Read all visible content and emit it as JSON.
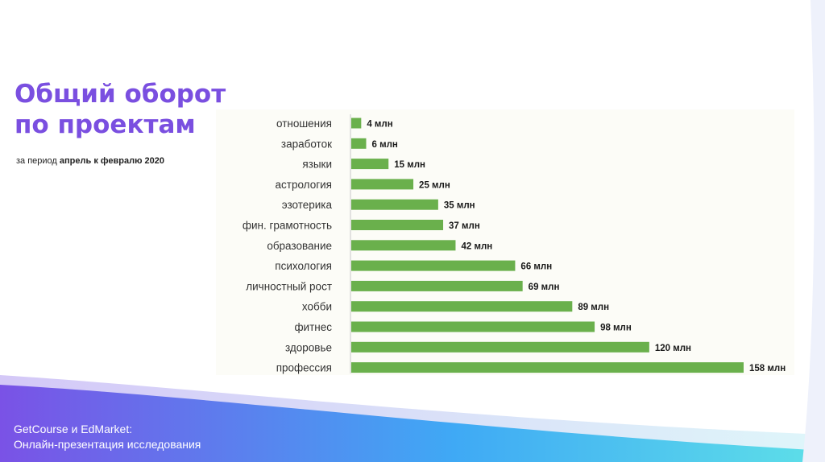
{
  "header": {
    "title_line1": "Общий оборот",
    "title_line2": "по проектам",
    "subtitle_prefix": "за период",
    "subtitle_bold": "апрель к февралю 2020"
  },
  "footer": {
    "line1": "GetCourse и EdMarket:",
    "line2": "Онлайн-презентация исследования"
  },
  "colors": {
    "title": "#7a4fe0",
    "bar": "#6ab04c",
    "footer_gradient": [
      "#7a52e6",
      "#3fa9f5",
      "#5ee0e8"
    ]
  },
  "chart_data": {
    "type": "bar",
    "orientation": "horizontal",
    "categories": [
      "отношения",
      "заработок",
      "языки",
      "астрология",
      "эзотерика",
      "фин. грамотность",
      "образование",
      "психология",
      "личностный рост",
      "хобби",
      "фитнес",
      "здоровье",
      "профессия"
    ],
    "values": [
      4,
      6,
      15,
      25,
      35,
      37,
      42,
      66,
      69,
      89,
      98,
      120,
      158
    ],
    "data_labels": [
      "4 млн",
      "6 млн",
      "15 млн",
      "25 млн",
      "35 млн",
      "37 млн",
      "42 млн",
      "66 млн",
      "69 млн",
      "89 млн",
      "98 млн",
      "120 млн",
      "158 млн"
    ],
    "unit": "млн",
    "xlim": [
      0,
      158
    ],
    "grid": false,
    "legend": "none"
  }
}
